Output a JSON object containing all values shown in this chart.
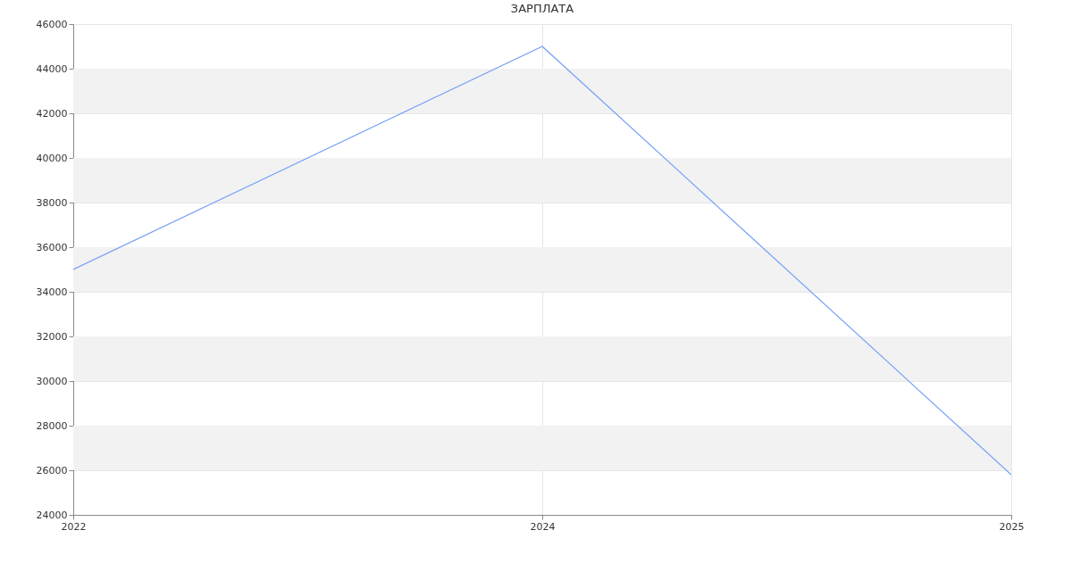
{
  "chart_data": {
    "type": "line",
    "title": "ЗАРПЛАТА",
    "categories": [
      "2022",
      "2024",
      "2025"
    ],
    "series": [
      {
        "color": "#6f9ef8",
        "values": [
          35000,
          45000,
          25800
        ]
      }
    ],
    "ylim": [
      24000,
      46000
    ],
    "yticks": [
      24000,
      26000,
      28000,
      30000,
      32000,
      34000,
      36000,
      38000,
      40000,
      42000,
      44000,
      46000
    ],
    "bands": [
      {
        "axis": "y",
        "from": 26000,
        "to": 28000,
        "color": "#f2f2f2"
      },
      {
        "axis": "y",
        "from": 30000,
        "to": 32000,
        "color": "#f2f2f2"
      },
      {
        "axis": "y",
        "from": 34000,
        "to": 36000,
        "color": "#f2f2f2"
      },
      {
        "axis": "y",
        "from": 38000,
        "to": 40000,
        "color": "#f2f2f2"
      },
      {
        "axis": "y",
        "from": 42000,
        "to": 44000,
        "color": "#f2f2f2"
      }
    ],
    "grid": true,
    "marker": "none",
    "line_style": "solid"
  }
}
